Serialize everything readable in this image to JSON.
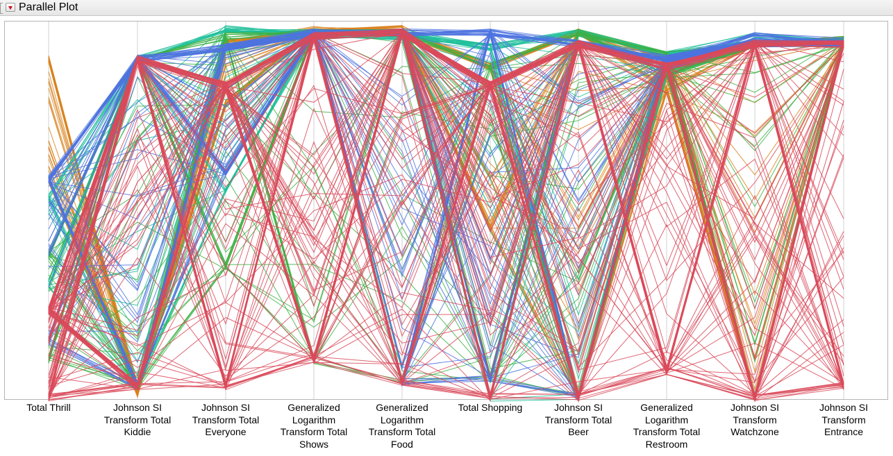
{
  "header": {
    "title": "Parallel Plot"
  },
  "chart_data": {
    "type": "parallel-coordinates",
    "title": "",
    "axes": [
      "Total Thrill",
      "Johnson SI Transform Total Kiddie",
      "Johnson SI Transform Total Everyone",
      "Generalized Logarithm Transform Total Shows",
      "Generalized Logarithm Transform Total Food",
      "Total Shopping",
      "Johnson SI Transform Total Beer",
      "Generalized Logarithm Transform Total Restroom",
      "Johnson SI Transform Watchzone",
      "Johnson SI Transform Entrance"
    ],
    "axis_labels": [
      [
        "Total Thrill"
      ],
      [
        "Johnson SI",
        "Transform Total",
        "Kiddie"
      ],
      [
        "Johnson SI",
        "Transform Total",
        "Everyone"
      ],
      [
        "Generalized",
        "Logarithm",
        "Transform Total",
        "Shows"
      ],
      [
        "Generalized",
        "Logarithm",
        "Transform Total",
        "Food"
      ],
      [
        "Total Shopping"
      ],
      [
        "Johnson SI",
        "Transform Total",
        "Beer"
      ],
      [
        "Generalized",
        "Logarithm",
        "Transform Total",
        "Restroom"
      ],
      [
        "Johnson SI",
        "Transform",
        "Watchzone"
      ],
      [
        "Johnson SI",
        "Transform",
        "Entrance"
      ]
    ],
    "value_scale": "each axis scaled from its minimum (0 = bottom) to its maximum (1 = top)",
    "grid": true,
    "legend": "none",
    "series": [
      {
        "color": "#d9831f",
        "lines": 55,
        "profile": [
          [
            0.58,
            0.92
          ],
          [
            0.03,
            0.03
          ],
          [
            0.78,
            0.96
          ],
          [
            0.98,
            0.99
          ],
          [
            0.98,
            0.99
          ],
          [
            0.45,
            0.9
          ],
          [
            0.0,
            0.99
          ],
          [
            0.82,
            0.92
          ],
          [
            0.0,
            0.96
          ],
          [
            0.95,
            0.96
          ]
        ]
      },
      {
        "color": "#1fbf9a",
        "lines": 45,
        "profile": [
          [
            0.3,
            0.55
          ],
          [
            0.03,
            0.92
          ],
          [
            0.55,
            1.0
          ],
          [
            0.96,
            0.99
          ],
          [
            0.96,
            0.99
          ],
          [
            0.0,
            0.95
          ],
          [
            0.0,
            0.99
          ],
          [
            0.86,
            0.93
          ],
          [
            0.96,
            0.96
          ],
          [
            0.95,
            0.96
          ]
        ]
      },
      {
        "color": "#3cb043",
        "lines": 45,
        "profile": [
          [
            0.1,
            0.4
          ],
          [
            0.03,
            0.92
          ],
          [
            0.35,
            0.98
          ],
          [
            0.1,
            0.99
          ],
          [
            0.04,
            0.99
          ],
          [
            0.05,
            0.9
          ],
          [
            0.0,
            0.99
          ],
          [
            0.86,
            0.93
          ],
          [
            0.0,
            0.96
          ],
          [
            0.95,
            0.96
          ]
        ]
      },
      {
        "color": "#4e73df",
        "lines": 80,
        "profile": [
          [
            0.15,
            0.6
          ],
          [
            0.03,
            0.92
          ],
          [
            0.6,
            0.95
          ],
          [
            0.97,
            0.99
          ],
          [
            0.04,
            0.99
          ],
          [
            0.05,
            0.99
          ],
          [
            0.0,
            0.96
          ],
          [
            0.88,
            0.92
          ],
          [
            0.96,
            0.96
          ],
          [
            0.95,
            0.96
          ]
        ]
      },
      {
        "color": "#d94a5a",
        "lines": 130,
        "profile": [
          [
            0.0,
            0.25
          ],
          [
            0.03,
            0.92
          ],
          [
            0.03,
            0.85
          ],
          [
            0.1,
            0.98
          ],
          [
            0.04,
            0.99
          ],
          [
            0.0,
            0.85
          ],
          [
            0.0,
            0.96
          ],
          [
            0.07,
            0.9
          ],
          [
            0.0,
            0.96
          ],
          [
            0.03,
            0.96
          ]
        ]
      }
    ]
  }
}
